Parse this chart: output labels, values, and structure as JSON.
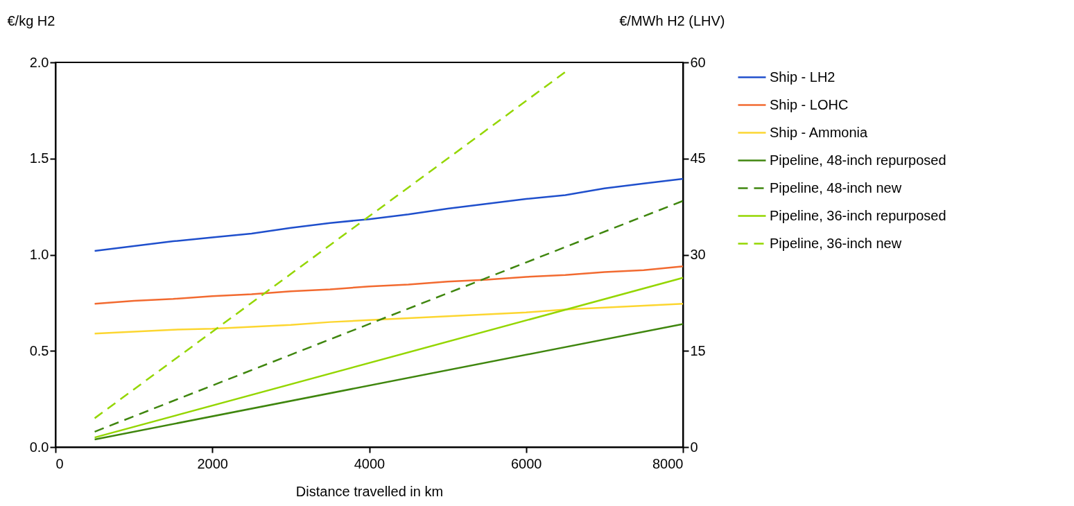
{
  "chart_data": {
    "type": "line",
    "xlabel": "Distance travelled in km",
    "ylabel": "€/kg H2",
    "y2label": "€/MWh H2 (LHV)",
    "x": [
      500,
      1000,
      1500,
      2000,
      2500,
      3000,
      3500,
      4000,
      4500,
      5000,
      5500,
      6000,
      6500,
      7000,
      7500,
      8000
    ],
    "xlim": [
      0,
      8000
    ],
    "xticks": [
      0,
      2000,
      4000,
      6000,
      8000
    ],
    "ylim": [
      0,
      2
    ],
    "yticks": [
      {
        "value": 0,
        "label": "0.0"
      },
      {
        "value": 0.5,
        "label": "0.5"
      },
      {
        "value": 1,
        "label": "1.0"
      },
      {
        "value": 1.5,
        "label": "1.5"
      },
      {
        "value": 2,
        "label": "2.0"
      }
    ],
    "y2lim": [
      0,
      60
    ],
    "y2ticks": [
      0,
      15,
      30,
      45,
      60
    ],
    "grid": false,
    "legend": "right",
    "marker": "none",
    "series": [
      {
        "name": "Ship - LH2",
        "color": "#1f4fcc",
        "line_style": "solid",
        "values": [
          1.02,
          1.045,
          1.07,
          1.09,
          1.11,
          1.14,
          1.165,
          1.185,
          1.21,
          1.24,
          1.265,
          1.29,
          1.31,
          1.345,
          1.37,
          1.395
        ]
      },
      {
        "name": "Ship - LOHC",
        "color": "#f26a30",
        "line_style": "solid",
        "values": [
          0.745,
          0.76,
          0.77,
          0.785,
          0.795,
          0.81,
          0.82,
          0.835,
          0.845,
          0.86,
          0.87,
          0.885,
          0.895,
          0.91,
          0.92,
          0.94
        ]
      },
      {
        "name": "Ship - Ammonia",
        "color": "#fcd630",
        "line_style": "solid",
        "values": [
          0.59,
          0.6,
          0.61,
          0.615,
          0.625,
          0.635,
          0.65,
          0.66,
          0.67,
          0.68,
          0.69,
          0.7,
          0.715,
          0.725,
          0.735,
          0.745
        ]
      },
      {
        "name": "Pipeline, 48-inch repurposed",
        "color": "#3f860e",
        "line_style": "solid",
        "x": [
          500,
          8000
        ],
        "values": [
          0.04,
          0.64
        ]
      },
      {
        "name": "Pipeline, 48-inch new",
        "color": "#3f860e",
        "line_style": "dashed",
        "x": [
          500,
          8000
        ],
        "values": [
          0.08,
          1.28
        ]
      },
      {
        "name": "Pipeline, 36-inch repurposed",
        "color": "#94d600",
        "line_style": "solid",
        "x": [
          500,
          8000
        ],
        "values": [
          0.05,
          0.88
        ]
      },
      {
        "name": "Pipeline, 36-inch new",
        "color": "#94d600",
        "line_style": "dashed",
        "x": [
          500,
          6500
        ],
        "values": [
          0.15,
          1.95
        ]
      }
    ]
  }
}
